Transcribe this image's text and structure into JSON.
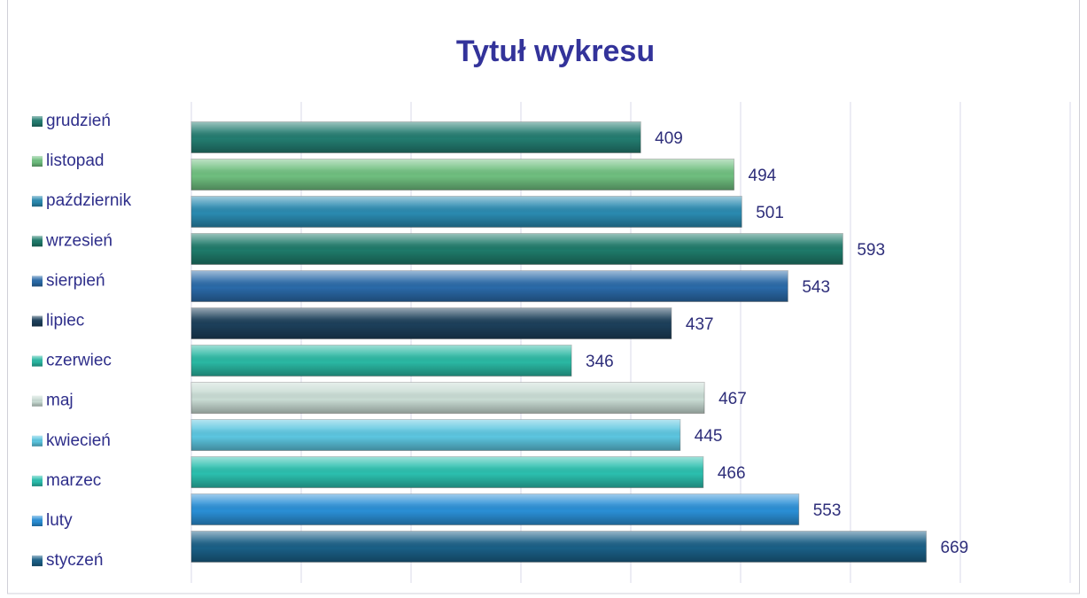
{
  "chart_data": {
    "type": "bar",
    "orientation": "horizontal",
    "title": "Tytuł wykresu",
    "categories": [
      "styczeń",
      "luty",
      "marzec",
      "kwiecień",
      "maj",
      "czerwiec",
      "lipiec",
      "sierpień",
      "wrzesień",
      "październik",
      "listopad",
      "grudzień"
    ],
    "values": [
      669,
      553,
      466,
      445,
      467,
      346,
      437,
      543,
      593,
      501,
      494,
      409
    ],
    "colors": [
      "#1a5f86",
      "#2a8fd6",
      "#2bbfae",
      "#5cc6e0",
      "#c9dcd4",
      "#2ab8a3",
      "#1c3f5a",
      "#2a6aa8",
      "#1e7a6a",
      "#2a8ab0",
      "#6fbf7f",
      "#237c70"
    ],
    "xlim": [
      0,
      800
    ],
    "xticks": [
      0,
      100,
      200,
      300,
      400,
      500,
      600,
      700,
      800
    ],
    "grid": true,
    "legend": "left"
  }
}
